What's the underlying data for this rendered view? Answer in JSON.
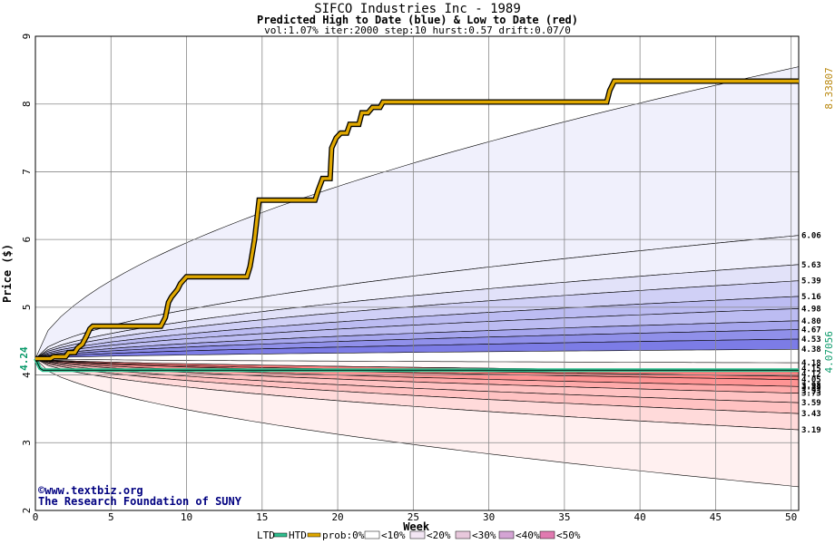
{
  "header": {
    "title": "SIFCO Industries Inc - 1989",
    "subtitle": "Predicted High to Date (blue) &  Low to Date (red)",
    "params": "vol:1.07% iter:2000 step:10 hurst:0.57 drift:0.07/0"
  },
  "credits": {
    "line1": "©www.textbiz.org",
    "line2": "The Research Foundation of SUNY"
  },
  "chart_data": {
    "type": "area",
    "xlabel": "Week",
    "ylabel": "Price ($)",
    "xlim": [
      0,
      50.5
    ],
    "ylim": [
      2,
      9
    ],
    "x_ticks": [
      0,
      5,
      10,
      15,
      20,
      25,
      30,
      35,
      40,
      45,
      50
    ],
    "y_ticks": [
      2,
      3,
      4,
      5,
      6,
      7,
      8,
      9
    ],
    "start_price": 4.24,
    "start_label": "4.24",
    "end_high": 8.33807,
    "end_high_label": "8.33807",
    "end_low": 4.07056,
    "end_low_label": "4.07056",
    "right_labels": [
      "6.06",
      "5.63",
      "5.39",
      "5.16",
      "4.98",
      "4.80",
      "4.67",
      "4.53",
      "4.38",
      "4.18",
      "4.15",
      "4.12",
      "4.05",
      "3.98",
      "3.93",
      "3.83",
      "3.73",
      "3.59",
      "3.43",
      "3.19"
    ],
    "band_values": [
      6.06,
      5.63,
      5.39,
      5.16,
      4.98,
      4.8,
      4.67,
      4.53,
      4.38,
      4.18,
      4.15,
      4.12,
      4.05,
      3.98,
      3.93,
      3.83,
      3.73,
      3.59,
      3.43,
      3.19
    ],
    "outer_high_end": 8.55,
    "outer_low_end": 2.35,
    "htd_series": [
      [
        0,
        4.24
      ],
      [
        1,
        4.24
      ],
      [
        1.2,
        4.27
      ],
      [
        2,
        4.27
      ],
      [
        2.2,
        4.33
      ],
      [
        2.6,
        4.33
      ],
      [
        2.8,
        4.4
      ],
      [
        3.1,
        4.45
      ],
      [
        3.4,
        4.58
      ],
      [
        3.6,
        4.68
      ],
      [
        3.8,
        4.72
      ],
      [
        8.3,
        4.72
      ],
      [
        8.6,
        4.85
      ],
      [
        8.8,
        5.07
      ],
      [
        9.0,
        5.15
      ],
      [
        9.4,
        5.26
      ],
      [
        9.6,
        5.35
      ],
      [
        10.0,
        5.45
      ],
      [
        14.0,
        5.45
      ],
      [
        14.2,
        5.6
      ],
      [
        14.5,
        6.0
      ],
      [
        14.8,
        6.58
      ],
      [
        18.5,
        6.58
      ],
      [
        18.7,
        6.72
      ],
      [
        19.0,
        6.9
      ],
      [
        19.5,
        6.9
      ],
      [
        19.6,
        7.35
      ],
      [
        19.9,
        7.5
      ],
      [
        20.2,
        7.57
      ],
      [
        20.6,
        7.57
      ],
      [
        20.8,
        7.7
      ],
      [
        21.4,
        7.7
      ],
      [
        21.6,
        7.87
      ],
      [
        22.0,
        7.87
      ],
      [
        22.3,
        7.95
      ],
      [
        22.8,
        7.95
      ],
      [
        23.0,
        8.03
      ],
      [
        37.8,
        8.03
      ],
      [
        38.0,
        8.2
      ],
      [
        38.3,
        8.33807
      ],
      [
        50.5,
        8.33807
      ]
    ],
    "ltd_series": [
      [
        0,
        4.24
      ],
      [
        0.3,
        4.1
      ],
      [
        0.5,
        4.07056
      ],
      [
        50.5,
        4.07056
      ]
    ],
    "legend": {
      "ltd": "LTD",
      "htd": "HTD",
      "prob": "prob:0%",
      "p10": "<10%",
      "p20": "<20%",
      "p30": "<30%",
      "p40": "<40%",
      "p50": "<50%"
    },
    "colors": {
      "htd": "#e0a800",
      "ltd": "#2fbf8f",
      "end_high_text": "#b8860b",
      "end_low_text": "#0a9a6a",
      "blue_bands": [
        "#f0f0fc",
        "#e2e2f9",
        "#d0d0f6",
        "#bcbcf2",
        "#a6a6ee",
        "#9090ea",
        "#7c7ce6"
      ],
      "red_bands": [
        "#fff0f0",
        "#ffdada",
        "#ffc2c2",
        "#ffaaaa",
        "#ff9494",
        "#ff8080"
      ]
    },
    "grid": true
  }
}
